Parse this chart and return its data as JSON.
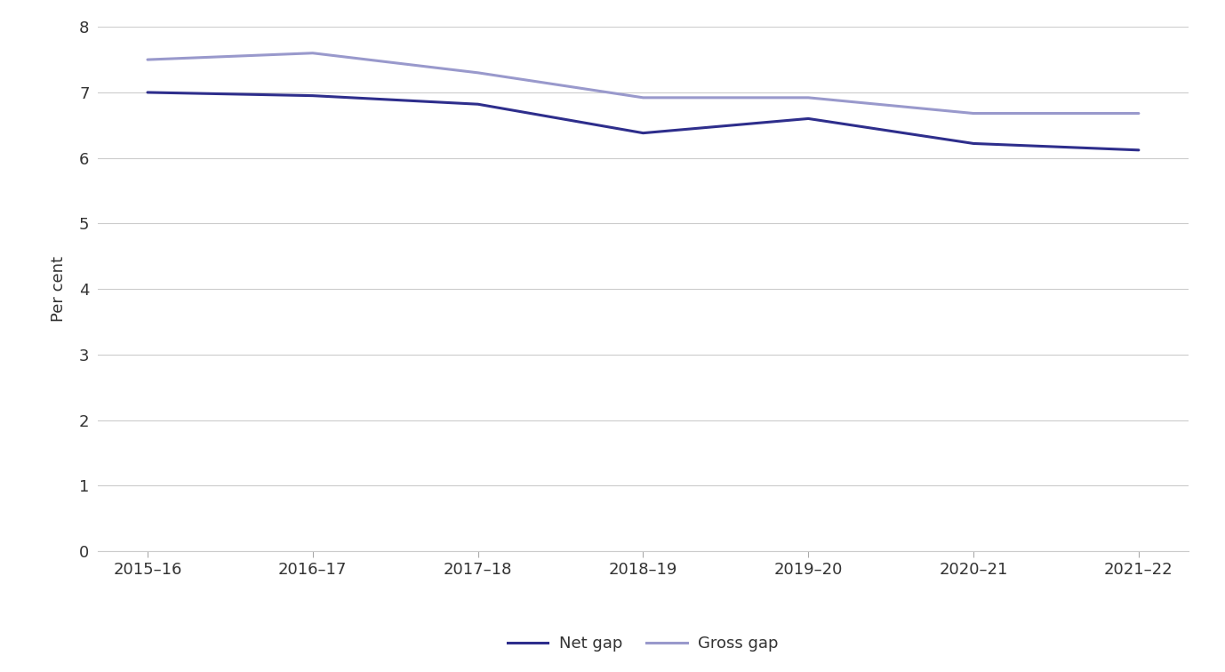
{
  "categories": [
    "2015–16",
    "2016–17",
    "2017–18",
    "2018–19",
    "2019–20",
    "2020–21",
    "2021–22"
  ],
  "net_gap": [
    7.0,
    6.95,
    6.82,
    6.38,
    6.6,
    6.22,
    6.12
  ],
  "gross_gap": [
    7.5,
    7.6,
    7.3,
    6.92,
    6.92,
    6.68,
    6.68
  ],
  "net_gap_color": "#2e2e8c",
  "gross_gap_color": "#9999cc",
  "net_gap_label": "Net gap",
  "gross_gap_label": "Gross gap",
  "ylabel": "Per cent",
  "ylim": [
    0,
    8
  ],
  "yticks": [
    0,
    1,
    2,
    3,
    4,
    5,
    6,
    7,
    8
  ],
  "line_width": 2.2,
  "background_color": "#ffffff",
  "grid_color": "#cccccc",
  "label_fontsize": 13,
  "tick_fontsize": 13,
  "legend_fontsize": 13
}
